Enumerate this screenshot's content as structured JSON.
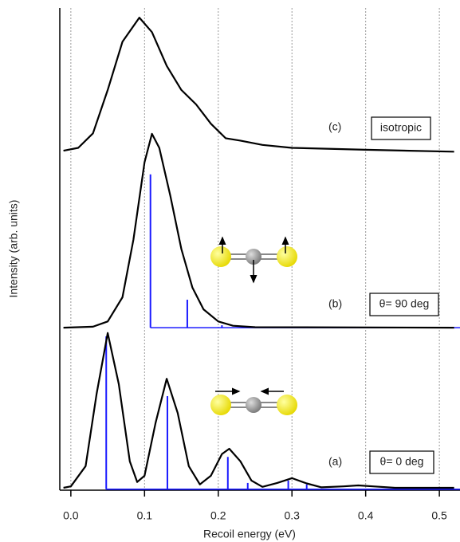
{
  "chart_data": {
    "type": "line",
    "xlabel": "Recoil energy (eV)",
    "ylabel": "Intensity (arb. units)",
    "xlim": [
      -0.015,
      0.528
    ],
    "ylim": [
      0,
      100
    ],
    "xticks": [
      {
        "value": 0,
        "label": "0.0"
      },
      0.1,
      0.2,
      0.3,
      0.4,
      0.5
    ],
    "grid": true,
    "annotations": [
      "(c)",
      "isotropic",
      "(b)",
      "θ= 90 deg",
      "(a)",
      "θ= 0 deg"
    ],
    "series": [
      {
        "type": "curve",
        "color": "#000000",
        "x": [
          -0.01,
          0.0,
          0.02,
          0.035,
          0.05,
          0.065,
          0.08,
          0.09,
          0.1,
          0.115,
          0.13,
          0.145,
          0.16,
          0.175,
          0.19,
          0.205,
          0.215,
          0.23,
          0.245,
          0.26,
          0.28,
          0.3,
          0.32,
          0.34,
          0.37,
          0.39,
          0.41,
          0.44,
          0.52
        ],
        "values": [
          0.5,
          0.8,
          5,
          20,
          32.6,
          22,
          6,
          1.7,
          3,
          14,
          23.1,
          16,
          5,
          1.2,
          3,
          7.5,
          8.6,
          6,
          2,
          0.7,
          1.5,
          2.5,
          1.4,
          0.6,
          0.8,
          1.0,
          0.8,
          0.5,
          0.5
        ]
      },
      {
        "type": "curve",
        "color": "#000000",
        "x": [
          -0.01,
          0.03,
          0.05,
          0.07,
          0.085,
          0.1,
          0.11,
          0.12,
          0.135,
          0.15,
          0.165,
          0.18,
          0.2,
          0.22,
          0.25,
          0.52
        ],
        "values": [
          33.7,
          33.9,
          35,
          40,
          52,
          68,
          73.9,
          71,
          61,
          50,
          42,
          37.5,
          35,
          34.1,
          33.8,
          33.7
        ]
      },
      {
        "type": "curve",
        "color": "#000000",
        "x": [
          -0.01,
          0.01,
          0.03,
          0.05,
          0.07,
          0.093,
          0.11,
          0.13,
          0.15,
          0.17,
          0.19,
          0.21,
          0.23,
          0.26,
          0.3,
          0.4,
          0.52
        ],
        "values": [
          70.4,
          71,
          74,
          83,
          93,
          98,
          95,
          88,
          83,
          80,
          76,
          73,
          72.5,
          71.6,
          71,
          70.6,
          70.2
        ]
      },
      {
        "type": "stick",
        "color": "#1a1aff",
        "baseline": 0.2,
        "x": [
          0.048,
          0.131,
          0.213,
          0.24,
          0.295,
          0.32
        ],
        "values": [
          31.9,
          19.5,
          6.9,
          1.5,
          2,
          1.2
        ]
      },
      {
        "type": "stick",
        "color": "#1a1aff",
        "baseline": 33.7,
        "x": [
          0.108,
          0.158,
          0.205
        ],
        "values": [
          65.5,
          39.5,
          34.2
        ]
      }
    ]
  }
}
